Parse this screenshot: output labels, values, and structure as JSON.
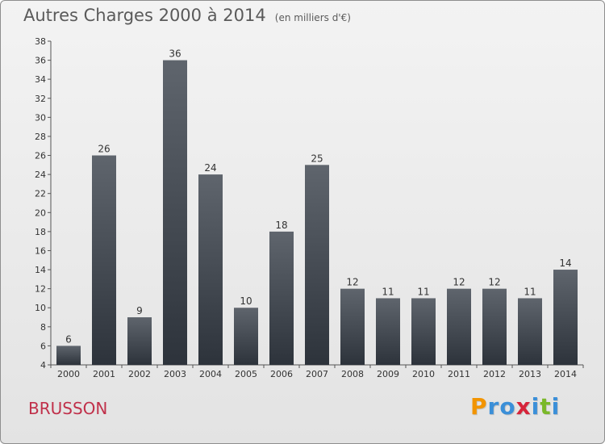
{
  "header": {
    "title": "Autres Charges 2000 à 2014",
    "subtitle": "(en milliers d'€)"
  },
  "location": "BRUSSON",
  "brand": {
    "letters": [
      "P",
      "r",
      "o",
      "x",
      "i",
      "t",
      "i"
    ],
    "colors": [
      "#f29400",
      "#3b8fd8",
      "#3b8fd8",
      "#d6243a",
      "#3b8fd8",
      "#7ab829",
      "#3b8fd8"
    ]
  },
  "chart_data": {
    "type": "bar",
    "title": "Autres Charges 2000 à 2014",
    "subtitle": "(en milliers d'€)",
    "xlabel": "",
    "ylabel": "",
    "categories": [
      "2000",
      "2001",
      "2002",
      "2003",
      "2004",
      "2005",
      "2006",
      "2007",
      "2008",
      "2009",
      "2010",
      "2011",
      "2012",
      "2013",
      "2014"
    ],
    "values": [
      6,
      26,
      9,
      36,
      24,
      10,
      18,
      25,
      12,
      11,
      11,
      12,
      12,
      11,
      14
    ],
    "ylim": [
      4,
      38
    ],
    "yticks": [
      4,
      6,
      8,
      10,
      12,
      14,
      16,
      18,
      20,
      22,
      24,
      26,
      28,
      30,
      32,
      34,
      36,
      38
    ],
    "grid": false,
    "legend": "none",
    "bar_color_top": "#5f656d",
    "bar_color_bottom": "#2d333b"
  }
}
